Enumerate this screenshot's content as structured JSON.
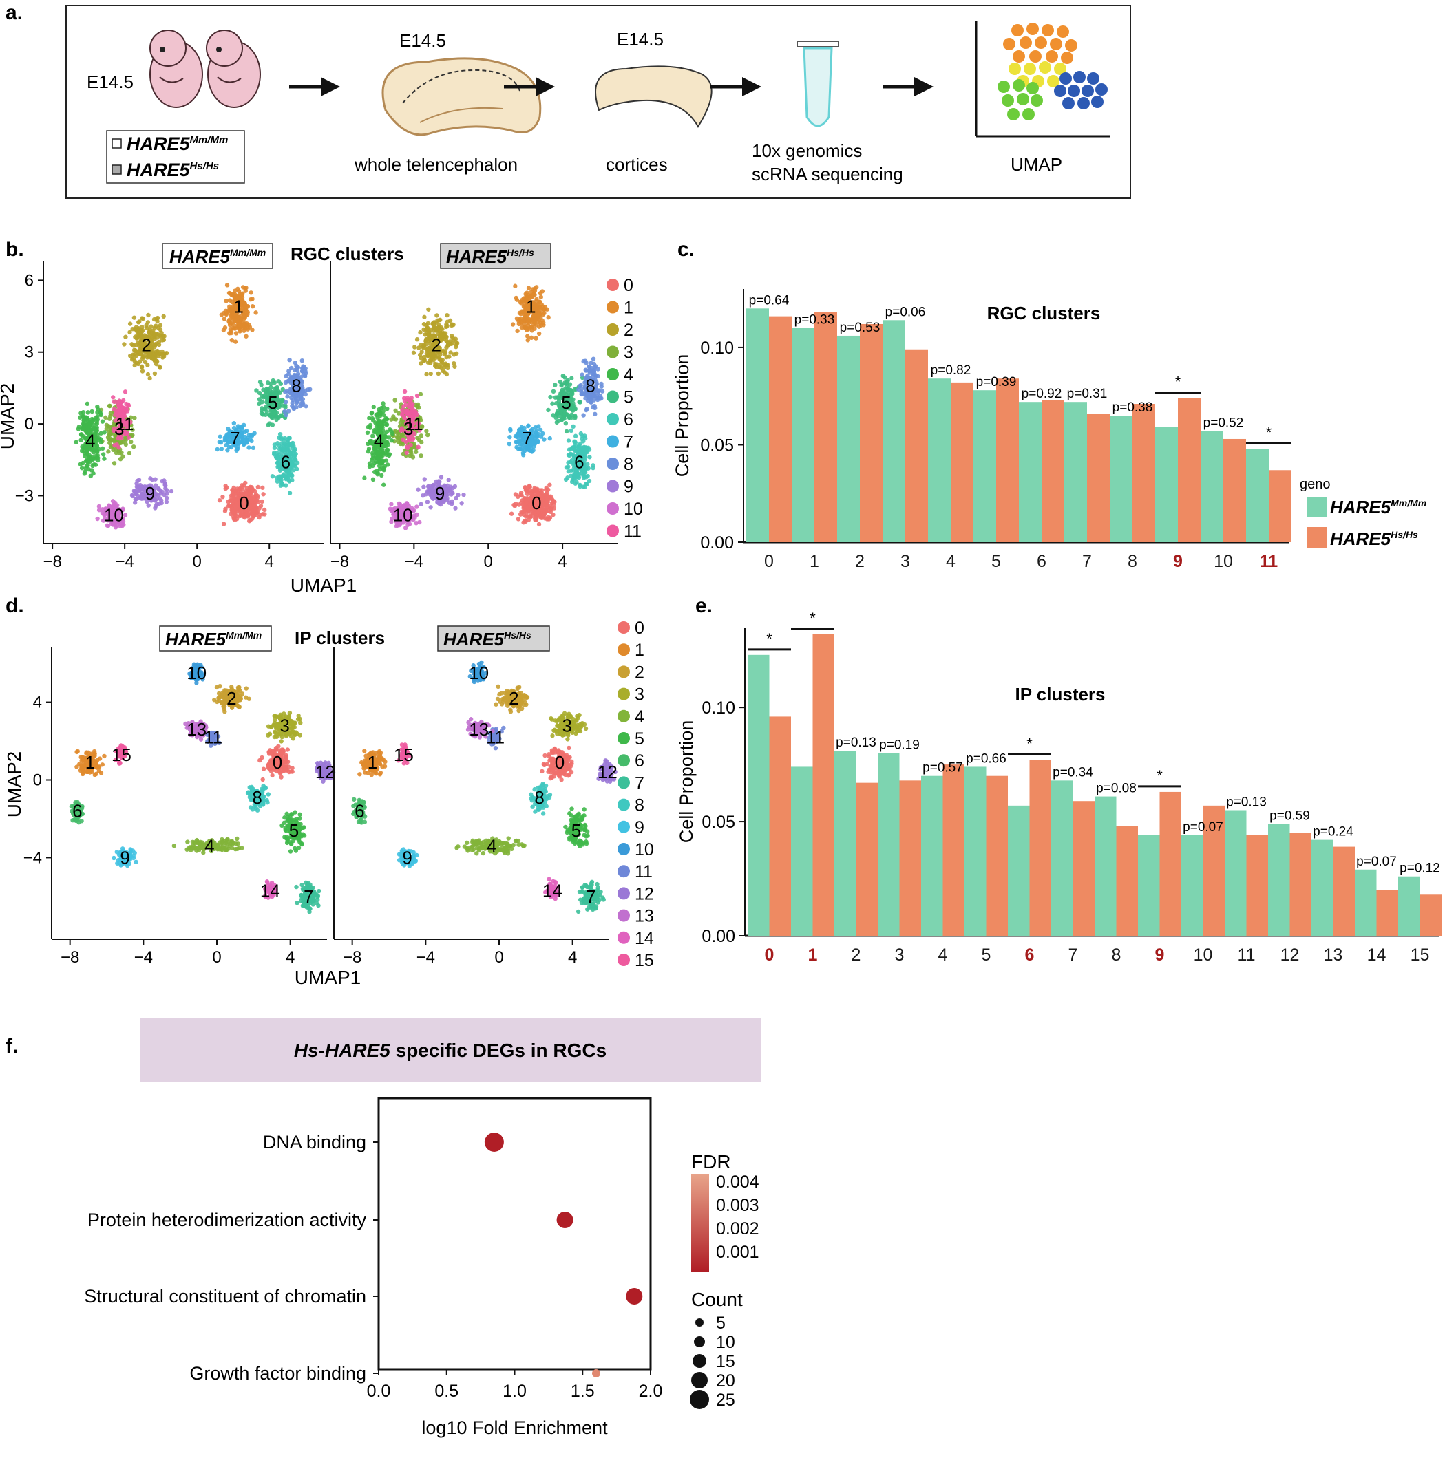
{
  "panel_a": {
    "label": "a.",
    "stage_left": "E14.5",
    "legend_mm": "HARE5",
    "legend_mm_sup": "Mm/Mm",
    "legend_hs": "HARE5",
    "legend_hs_sup": "Hs/Hs",
    "tel_stage": "E14.5",
    "tel_caption": "whole telencephalon",
    "cort_stage": "E14.5",
    "cort_caption": "cortices",
    "seq_caption_1": "10x genomics",
    "seq_caption_2": "scRNA sequencing",
    "umap_caption": "UMAP",
    "colors": {
      "embryo": "#f0c3cf",
      "tissue": "#f5e6c8",
      "tissue_edge": "#b48a55",
      "tube": "#67d2d6",
      "orange": "#f0902f",
      "yellow": "#ece23a",
      "green": "#6ccc3a",
      "blue": "#2d5ab4"
    }
  },
  "panel_b": {
    "label": "b.",
    "title": "RGC clusters",
    "geno_mm": "HARE5",
    "geno_mm_sup": "Mm/Mm",
    "geno_hs": "HARE5",
    "geno_hs_sup": "Hs/Hs",
    "xlabel": "UMAP1",
    "ylabel": "UMAP2",
    "xticks": [
      "−8",
      "−4",
      "0",
      "4"
    ],
    "yticks": [
      "6",
      "3",
      "0",
      "−3"
    ],
    "legend": [
      "0",
      "1",
      "2",
      "3",
      "4",
      "5",
      "6",
      "7",
      "8",
      "9",
      "10",
      "11"
    ],
    "colors": [
      "#ef6f6c",
      "#e08a2c",
      "#b7a22a",
      "#7fb03a",
      "#3fb84a",
      "#3cbc82",
      "#40c8b8",
      "#3fb0e0",
      "#6a8fdb",
      "#a07ad8",
      "#cf6fcf",
      "#ee5aa0"
    ]
  },
  "panel_c": {
    "label": "c.",
    "chart_data": {
      "type": "bar",
      "title": "RGC clusters",
      "xlabel": "",
      "ylabel": "Cell Proportion",
      "ylim": [
        0,
        0.13
      ],
      "yticks": [
        "0.00",
        "0.05",
        "0.10"
      ],
      "categories": [
        "0",
        "1",
        "2",
        "3",
        "4",
        "5",
        "6",
        "7",
        "8",
        "9",
        "10",
        "11"
      ],
      "highlight": [
        "9",
        "11"
      ],
      "series": [
        {
          "name": "HARE5 Mm/Mm",
          "color": "#7dd4b0",
          "values": [
            0.12,
            0.11,
            0.106,
            0.114,
            0.084,
            0.078,
            0.072,
            0.072,
            0.065,
            0.059,
            0.057,
            0.048
          ]
        },
        {
          "name": "HARE5 Hs/Hs",
          "color": "#ee8a62",
          "values": [
            0.116,
            0.118,
            0.112,
            0.099,
            0.082,
            0.084,
            0.073,
            0.066,
            0.071,
            0.074,
            0.053,
            0.037
          ]
        }
      ],
      "annotations": [
        "p=0.64",
        "p=0.33",
        "p=0.53",
        "p=0.06",
        "p=0.82",
        "p=0.39",
        "p=0.92",
        "p=0.31",
        "p=0.38",
        "*",
        "p=0.52",
        "*"
      ],
      "legend_title": "geno",
      "legend_mm": "HARE5",
      "legend_mm_sup": "Mm/Mm",
      "legend_hs": "HARE5",
      "legend_hs_sup": "Hs/Hs"
    }
  },
  "panel_d": {
    "label": "d.",
    "title": "IP clusters",
    "geno_mm": "HARE5",
    "geno_mm_sup": "Mm/Mm",
    "geno_hs": "HARE5",
    "geno_hs_sup": "Hs/Hs",
    "xlabel": "UMAP1",
    "ylabel": "UMAP2",
    "xticks": [
      "−8",
      "−4",
      "0",
      "4"
    ],
    "yticks": [
      "4",
      "0",
      "−4"
    ],
    "legend": [
      "0",
      "1",
      "2",
      "3",
      "4",
      "5",
      "6",
      "7",
      "8",
      "9",
      "10",
      "11",
      "12",
      "13",
      "14",
      "15"
    ],
    "colors": [
      "#ef6f6c",
      "#e08a2c",
      "#c9a032",
      "#a9ad2c",
      "#82b43a",
      "#3fb84a",
      "#46bb6a",
      "#3cc09a",
      "#40c8c0",
      "#42c2e2",
      "#3a9ad8",
      "#6e87d8",
      "#9a78d6",
      "#c170cf",
      "#e062be",
      "#ee5a9e"
    ]
  },
  "panel_e": {
    "label": "e.",
    "chart_data": {
      "type": "bar",
      "title": "IP clusters",
      "xlabel": "",
      "ylabel": "Cell Proportion",
      "ylim": [
        0,
        0.135
      ],
      "yticks": [
        "0.00",
        "0.05",
        "0.10"
      ],
      "categories": [
        "0",
        "1",
        "2",
        "3",
        "4",
        "5",
        "6",
        "7",
        "8",
        "9",
        "10",
        "11",
        "12",
        "13",
        "14",
        "15"
      ],
      "highlight": [
        "0",
        "1",
        "6",
        "9"
      ],
      "series": [
        {
          "name": "HARE5 Mm/Mm",
          "color": "#7dd4b0",
          "values": [
            0.123,
            0.074,
            0.081,
            0.08,
            0.07,
            0.074,
            0.057,
            0.068,
            0.061,
            0.044,
            0.044,
            0.055,
            0.049,
            0.042,
            0.029,
            0.026
          ]
        },
        {
          "name": "HARE5 Hs/Hs",
          "color": "#ee8a62",
          "values": [
            0.096,
            0.132,
            0.067,
            0.068,
            0.075,
            0.07,
            0.077,
            0.059,
            0.048,
            0.063,
            0.057,
            0.044,
            0.045,
            0.039,
            0.02,
            0.018
          ]
        }
      ],
      "annotations": [
        "*",
        "*",
        "p=0.13",
        "p=0.19",
        "p=0.57",
        "p=0.66",
        "*",
        "p=0.34",
        "p=0.08",
        "*",
        "p=0.07",
        "p=0.13",
        "p=0.59",
        "p=0.24",
        "p=0.07",
        "p=0.12"
      ]
    }
  },
  "panel_f": {
    "label": "f.",
    "banner_prefix": "Hs-HARE5",
    "banner_suffix": " specific DEGs in RGCs",
    "banner_color": "#e2d3e3",
    "chart_data": {
      "type": "scatter",
      "xlabel": "log10 Fold Enrichment",
      "ylabel": "",
      "xlim": [
        0,
        2.0
      ],
      "xticks": [
        "0.0",
        "0.5",
        "1.0",
        "1.5",
        "2.0"
      ],
      "categories": [
        "DNA binding",
        "Protein heterodimerization activity",
        "Structural constituent of chromatin",
        "Growth factor binding"
      ],
      "x": [
        0.85,
        1.37,
        1.88,
        1.6
      ],
      "count": [
        25,
        20,
        20,
        5
      ],
      "fdr": [
        0.0005,
        0.0006,
        0.0005,
        0.0042
      ],
      "fdr_legend_title": "FDR",
      "fdr_legend": [
        "0.004",
        "0.003",
        "0.002",
        "0.001"
      ],
      "count_legend_title": "Count",
      "count_legend": [
        "5",
        "10",
        "15",
        "20",
        "25"
      ]
    }
  }
}
